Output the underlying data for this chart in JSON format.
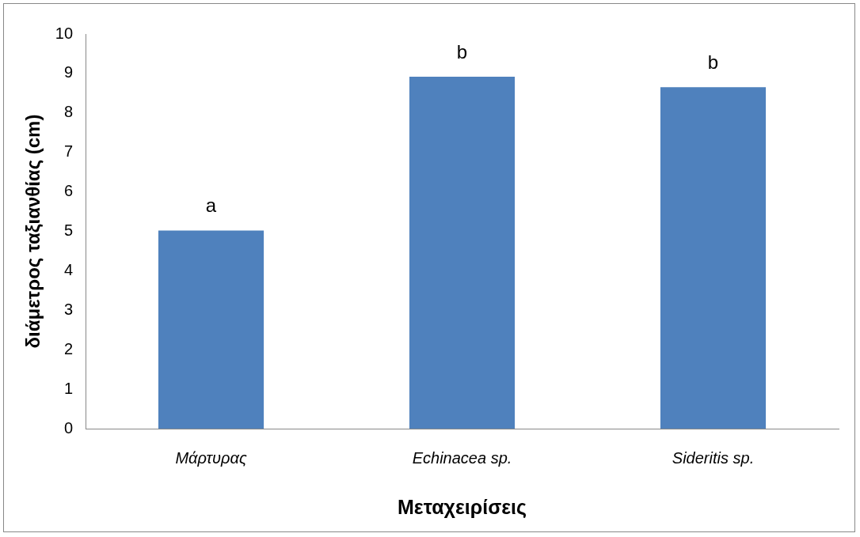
{
  "chart_data": {
    "type": "bar",
    "xlabel": "Μεταχειρίσεις",
    "ylabel": "διάμετρος ταξιανθίας (cm)",
    "categories": [
      "Μάρτυρας",
      "Echinacea sp.",
      "Sideritis sp."
    ],
    "values": [
      5.02,
      8.92,
      8.65
    ],
    "color": "#4f81bd",
    "ylim": [
      0,
      10
    ],
    "yticks": [
      0,
      1,
      2,
      3,
      4,
      5,
      6,
      7,
      8,
      9,
      10
    ],
    "grid": false,
    "legend": false,
    "annotations": [
      {
        "text": "a",
        "x": "Μάρτυρας",
        "y": 5.02
      },
      {
        "text": "b",
        "x": "Echinacea sp.",
        "y": 8.92
      },
      {
        "text": "b",
        "x": "Sideritis sp.",
        "y": 8.65
      }
    ]
  }
}
